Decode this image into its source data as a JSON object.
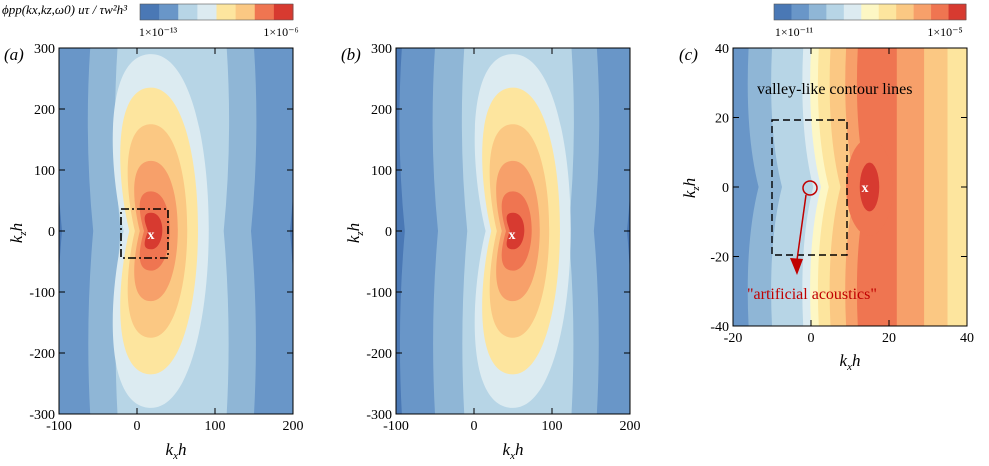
{
  "palette": [
    "#4a78b5",
    "#6996c8",
    "#8fb6d6",
    "#b7d5e6",
    "#dcebf1",
    "#fdf7c4",
    "#fde59e",
    "#fbc883",
    "#f7a06a",
    "#ef7551",
    "#d73a30"
  ],
  "colorbars": [
    {
      "title": "ϕpp(kx,kz,ω0) uτ / τw²h³",
      "min_label": "1×10⁻¹³",
      "max_label": "1×10⁻⁶",
      "levels": 8
    },
    {
      "min_label": "1×10⁻¹¹",
      "max_label": "1×10⁻⁵",
      "levels": 11
    }
  ],
  "annotations": {
    "valley": "valley-like contour lines",
    "artificial": "\"artificial acoustics\"",
    "peak_marker": "x"
  },
  "chart_data": [
    {
      "type": "heatmap",
      "panel_label": "(a)",
      "xlabel": "kxh",
      "ylabel": "kzh",
      "xlim": [
        -100,
        200
      ],
      "ylim": [
        -300,
        300
      ],
      "xticks": [
        "-100",
        "0",
        "100",
        "200"
      ],
      "yticks": [
        "300",
        "200",
        "100",
        "0",
        "-100",
        "-200",
        "-300"
      ],
      "peak": {
        "x": 18,
        "y": 0
      }
    },
    {
      "type": "heatmap",
      "panel_label": "(b)",
      "xlabel": "kxh",
      "ylabel": "kzh",
      "xlim": [
        -100,
        200
      ],
      "ylim": [
        -300,
        300
      ],
      "xticks": [
        "-100",
        "0",
        "100",
        "200"
      ],
      "yticks": [
        "300",
        "200",
        "100",
        "0",
        "-100",
        "-200",
        "-300"
      ],
      "peak": {
        "x": 50,
        "y": 0
      }
    },
    {
      "type": "heatmap",
      "panel_label": "(c)",
      "xlabel": "kxh",
      "ylabel": "kzh",
      "xlim": [
        -20,
        40
      ],
      "ylim": [
        -40,
        40
      ],
      "xticks": [
        "-20",
        "0",
        "20",
        "40"
      ],
      "yticks": [
        "40",
        "20",
        "0",
        "-20",
        "-40"
      ],
      "peak": {
        "x": 15,
        "y": 0
      },
      "circle": {
        "x": 0,
        "y": 0
      }
    }
  ]
}
